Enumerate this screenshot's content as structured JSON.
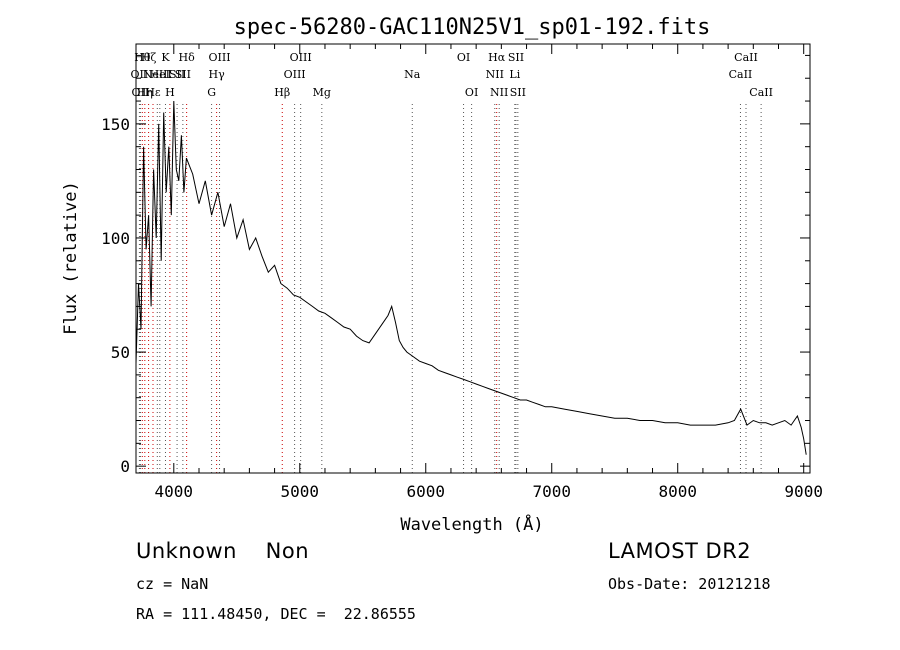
{
  "chart_data": {
    "type": "line",
    "title": "spec-56280-GAC110N25V1_sp01-192.fits",
    "xlabel": "Wavelength (Å)",
    "ylabel": "Flux (relative)",
    "xlim": [
      3700,
      9050
    ],
    "ylim": [
      -3,
      185
    ],
    "x_ticks": [
      4000,
      5000,
      6000,
      7000,
      8000,
      9000
    ],
    "y_ticks": [
      0,
      50,
      100,
      150
    ],
    "grid": false,
    "series": [
      {
        "x": [
          3700,
          3720,
          3740,
          3760,
          3780,
          3800,
          3820,
          3840,
          3860,
          3880,
          3900,
          3920,
          3940,
          3960,
          3980,
          4000,
          4020,
          4040,
          4060,
          4080,
          4100,
          4150,
          4200,
          4250,
          4300,
          4350,
          4400,
          4450,
          4500,
          4550,
          4600,
          4650,
          4700,
          4750,
          4800,
          4850,
          4900,
          4950,
          5000,
          5050,
          5100,
          5150,
          5200,
          5250,
          5300,
          5350,
          5400,
          5450,
          5500,
          5550,
          5600,
          5650,
          5700,
          5730,
          5760,
          5790,
          5820,
          5850,
          5900,
          5950,
          6000,
          6050,
          6100,
          6150,
          6200,
          6250,
          6300,
          6350,
          6400,
          6450,
          6500,
          6550,
          6600,
          6650,
          6700,
          6750,
          6800,
          6850,
          6900,
          6950,
          7000,
          7100,
          7200,
          7300,
          7400,
          7500,
          7600,
          7700,
          7800,
          7900,
          8000,
          8100,
          8200,
          8300,
          8400,
          8450,
          8500,
          8550,
          8600,
          8650,
          8700,
          8750,
          8800,
          8850,
          8900,
          8950,
          8980,
          9000,
          9020
        ],
        "values": [
          45,
          80,
          60,
          140,
          95,
          110,
          70,
          130,
          100,
          150,
          90,
          155,
          120,
          140,
          110,
          160,
          130,
          125,
          145,
          120,
          135,
          128,
          115,
          125,
          110,
          120,
          105,
          115,
          100,
          108,
          95,
          100,
          92,
          85,
          88,
          80,
          78,
          75,
          74,
          72,
          70,
          68,
          67,
          65,
          63,
          61,
          60,
          57,
          55,
          54,
          58,
          62,
          66,
          70,
          63,
          55,
          52,
          50,
          48,
          46,
          45,
          44,
          42,
          41,
          40,
          39,
          38,
          37,
          36,
          35,
          34,
          33,
          32,
          31,
          30,
          29,
          29,
          28,
          27,
          26,
          26,
          25,
          24,
          23,
          22,
          21,
          21,
          20,
          20,
          19,
          19,
          18,
          18,
          18,
          19,
          20,
          25,
          18,
          20,
          19,
          19,
          18,
          19,
          20,
          18,
          22,
          17,
          12,
          5
        ]
      }
    ],
    "lines": [
      {
        "x": 3727,
        "label": "OII",
        "row": 2
      },
      {
        "x": 3735,
        "label": "OII",
        "row": 3
      },
      {
        "x": 3750,
        "label": "Hθ",
        "row": 1
      },
      {
        "x": 3770,
        "label": "Hη",
        "row": 3
      },
      {
        "x": 3800,
        "label": "Hζ",
        "row": 1
      },
      {
        "x": 3835,
        "label": "Hε",
        "row": 3
      },
      {
        "x": 3869,
        "label": "NeIII",
        "row": 2
      },
      {
        "x": 3889,
        "label": "HeI",
        "row": 2
      },
      {
        "x": 3934,
        "label": "K",
        "row": 1
      },
      {
        "x": 3969,
        "label": "H",
        "row": 3
      },
      {
        "x": 4026,
        "label": "SII",
        "row": 2
      },
      {
        "x": 4072,
        "label": "SII",
        "row": 2
      },
      {
        "x": 4102,
        "label": "Hδ",
        "row": 1
      },
      {
        "x": 4300,
        "label": "G",
        "row": 3
      },
      {
        "x": 4340,
        "label": "Hγ",
        "row": 2
      },
      {
        "x": 4363,
        "label": "OIII",
        "row": 1
      },
      {
        "x": 4861,
        "label": "Hβ",
        "row": 3
      },
      {
        "x": 4959,
        "label": "OIII",
        "row": 2
      },
      {
        "x": 5007,
        "label": "OIII",
        "row": 1
      },
      {
        "x": 5175,
        "label": "Mg",
        "row": 3
      },
      {
        "x": 5893,
        "label": "Na",
        "row": 2
      },
      {
        "x": 6300,
        "label": "OI",
        "row": 1
      },
      {
        "x": 6364,
        "label": "OI",
        "row": 3
      },
      {
        "x": 6548,
        "label": "NII",
        "row": 2
      },
      {
        "x": 6563,
        "label": "Hα",
        "row": 1
      },
      {
        "x": 6583,
        "label": "NII",
        "row": 3
      },
      {
        "x": 6707,
        "label": "Li",
        "row": 2
      },
      {
        "x": 6716,
        "label": "SII",
        "row": 1
      },
      {
        "x": 6731,
        "label": "SII",
        "row": 3
      },
      {
        "x": 8498,
        "label": "CaII",
        "row": 2
      },
      {
        "x": 8542,
        "label": "CaII",
        "row": 1
      },
      {
        "x": 8662,
        "label": "CaII",
        "row": 3
      }
    ]
  },
  "footer": {
    "class_label": "Unknown    Non",
    "survey": "LAMOST DR2",
    "cz": "cz = NaN",
    "obs_date": "Obs-Date: 20121218",
    "coords": "RA = 111.48450, DEC =  22.86555"
  }
}
